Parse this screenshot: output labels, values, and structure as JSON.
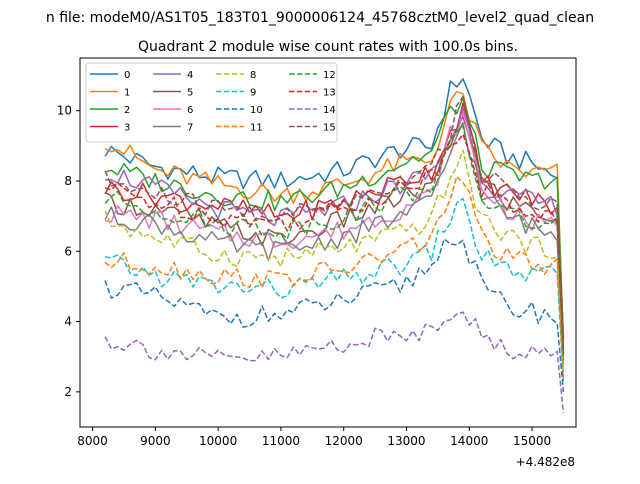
{
  "figure": {
    "suptitle": "n file: modeM0/AS1T05_183T01_9000006124_45768cztM0_level2_quad_clean",
    "title": "Quadrant 2 module wise count rates with 100.0s bins.",
    "offset_text": "+4.482e8"
  },
  "chart_data": {
    "type": "line",
    "title": "Quadrant 2 module wise count rates with 100.0s bins.",
    "xlabel": "",
    "ylabel": "",
    "x_offset": 448200000,
    "xlim": [
      7800,
      15700
    ],
    "ylim": [
      1.0,
      11.5
    ],
    "xticks": [
      8000,
      9000,
      10000,
      11000,
      12000,
      13000,
      14000,
      15000
    ],
    "xtick_labels": [
      "8000",
      "9000",
      "10000",
      "11000",
      "12000",
      "13000",
      "14000",
      "15000"
    ],
    "yticks": [
      2,
      4,
      6,
      8,
      10
    ],
    "ytick_labels": [
      "2",
      "4",
      "6",
      "8",
      "10"
    ],
    "grid": false,
    "legend": {
      "placement": "top-left",
      "columns": 4
    },
    "x_start": 8200,
    "x_step": 100,
    "key_x": [
      8200,
      9000,
      10000,
      11000,
      12000,
      12900,
      13400,
      13700,
      13900,
      14200,
      14600,
      15000,
      15400,
      15500
    ],
    "series": [
      {
        "name": "0",
        "color": "#1f77b4",
        "dash": "solid",
        "key_y": [
          8.9,
          8.4,
          8.1,
          8.0,
          8.3,
          8.9,
          9.0,
          10.6,
          11.0,
          9.2,
          8.7,
          8.5,
          8.1,
          3.5
        ]
      },
      {
        "name": "1",
        "color": "#ff7f0e",
        "dash": "solid",
        "key_y": [
          9.2,
          8.3,
          7.9,
          7.6,
          7.9,
          8.5,
          8.6,
          10.2,
          10.4,
          8.9,
          8.4,
          8.2,
          8.3,
          3.4
        ]
      },
      {
        "name": "2",
        "color": "#2ca02c",
        "dash": "solid",
        "key_y": [
          8.4,
          8.0,
          7.6,
          7.4,
          7.8,
          8.5,
          8.8,
          10.0,
          10.3,
          8.4,
          8.2,
          8.0,
          8.1,
          3.5
        ]
      },
      {
        "name": "3",
        "color": "#d62728",
        "dash": "solid",
        "key_y": [
          7.8,
          7.6,
          7.3,
          7.0,
          7.4,
          8.0,
          8.3,
          9.4,
          10.1,
          8.0,
          7.7,
          7.5,
          7.2,
          3.2
        ]
      },
      {
        "name": "4",
        "color": "#9467bd",
        "dash": "solid",
        "key_y": [
          8.3,
          7.8,
          7.2,
          6.9,
          7.3,
          7.9,
          8.2,
          9.2,
          10.0,
          8.1,
          7.6,
          7.4,
          7.3,
          3.1
        ]
      },
      {
        "name": "5",
        "color": "#8c564b",
        "dash": "solid",
        "key_y": [
          7.4,
          7.2,
          6.7,
          6.3,
          6.9,
          7.5,
          7.8,
          9.0,
          10.0,
          8.0,
          7.4,
          7.2,
          6.9,
          3.0
        ]
      },
      {
        "name": "6",
        "color": "#e377c2",
        "dash": "solid",
        "key_y": [
          7.1,
          6.9,
          6.5,
          6.3,
          6.6,
          7.2,
          7.6,
          9.3,
          9.8,
          7.8,
          7.2,
          6.8,
          6.7,
          2.9
        ]
      },
      {
        "name": "7",
        "color": "#7f7f7f",
        "dash": "solid",
        "key_y": [
          7.0,
          6.8,
          6.2,
          6.0,
          6.4,
          7.0,
          7.4,
          8.8,
          9.7,
          7.6,
          7.0,
          6.7,
          6.4,
          2.8
        ]
      },
      {
        "name": "8",
        "color": "#bcbd22",
        "dash": "dashed",
        "key_y": [
          6.9,
          6.4,
          5.9,
          5.8,
          6.1,
          6.5,
          6.9,
          8.2,
          8.6,
          6.9,
          6.5,
          6.1,
          6.1,
          2.6
        ]
      },
      {
        "name": "9",
        "color": "#17becf",
        "dash": "dashed",
        "key_y": [
          5.7,
          5.3,
          5.0,
          4.9,
          5.2,
          5.6,
          6.0,
          7.0,
          7.3,
          5.9,
          5.5,
          5.3,
          5.3,
          2.3
        ]
      },
      {
        "name": "10",
        "color": "#1f77b4",
        "dash": "dashed",
        "key_y": [
          5.0,
          4.7,
          4.1,
          4.2,
          4.6,
          5.0,
          5.6,
          6.5,
          6.3,
          5.0,
          4.4,
          4.3,
          4.1,
          2.0
        ]
      },
      {
        "name": "11",
        "color": "#ff7f0e",
        "dash": "dashed",
        "key_y": [
          5.7,
          5.6,
          5.3,
          5.2,
          5.5,
          6.0,
          6.4,
          7.6,
          8.1,
          6.4,
          5.8,
          5.6,
          5.5,
          2.4
        ]
      },
      {
        "name": "12",
        "color": "#2ca02c",
        "dash": "dashed",
        "key_y": [
          7.5,
          7.2,
          6.8,
          6.6,
          7.0,
          7.6,
          7.9,
          8.9,
          9.4,
          7.5,
          7.1,
          6.8,
          6.8,
          3.0
        ]
      },
      {
        "name": "13",
        "color": "#d62728",
        "dash": "dashed",
        "key_y": [
          7.8,
          7.4,
          7.0,
          6.8,
          7.2,
          7.8,
          8.1,
          9.0,
          9.6,
          7.8,
          7.3,
          7.1,
          7.0,
          3.1
        ]
      },
      {
        "name": "14",
        "color": "#9467bd",
        "dash": "dashed",
        "key_y": [
          3.5,
          3.2,
          2.9,
          3.0,
          3.4,
          3.6,
          3.8,
          4.3,
          4.5,
          3.5,
          3.2,
          3.2,
          3.0,
          1.4
        ]
      },
      {
        "name": "15",
        "color": "#8c564b",
        "dash": "dashed",
        "key_y": [
          8.0,
          7.6,
          7.2,
          7.0,
          7.4,
          8.0,
          8.5,
          9.3,
          10.6,
          8.2,
          7.7,
          7.5,
          7.3,
          3.2
        ]
      }
    ]
  }
}
